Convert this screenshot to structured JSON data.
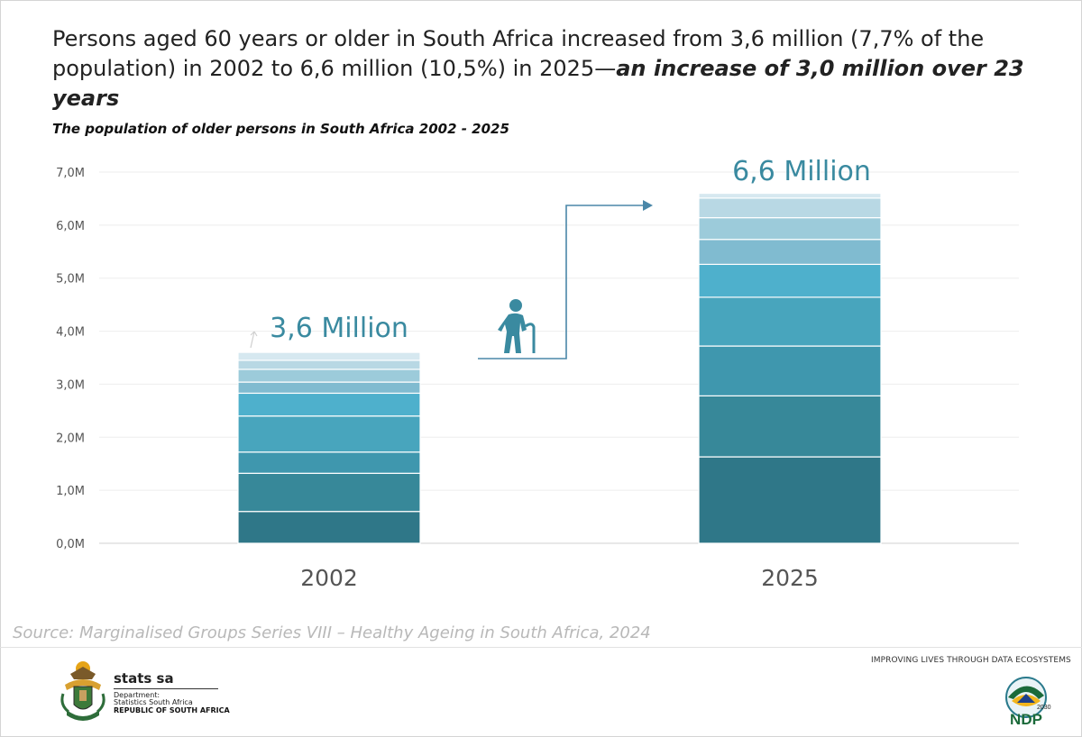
{
  "header": {
    "headline_plain": "Persons aged 60 years or older in South Africa increased from 3,6 million (7,7% of the population) in 2002 to 6,6 million (10,5%) in 2025—",
    "headline_bold": "an increase of 3,0 million over 23 years"
  },
  "chart_data": {
    "type": "bar",
    "title": "The population of older persons in South Africa 2002 - 2025",
    "categories": [
      "2002",
      "2025"
    ],
    "stacked": true,
    "totals": [
      3.6,
      6.6
    ],
    "total_labels": [
      "3,6 Million",
      "6,6 Million"
    ],
    "segments": [
      [
        0.6,
        0.72,
        0.4,
        0.68,
        0.43,
        0.21,
        0.24,
        0.17,
        0.15
      ],
      [
        1.63,
        1.15,
        0.94,
        0.92,
        0.62,
        0.47,
        0.41,
        0.37,
        0.09
      ]
    ],
    "ylim": [
      0,
      7.0
    ],
    "yticks": [
      0,
      1,
      2,
      3,
      4,
      5,
      6,
      7
    ],
    "ytick_labels": [
      "0,0M",
      "1,0M",
      "2,0M",
      "3,0M",
      "4,0M",
      "5,0M",
      "6,0M",
      "7,0M"
    ],
    "grid": true,
    "segment_colors": [
      "#2f7788",
      "#378899",
      "#3f97ae",
      "#48a5bd",
      "#4eb0cc",
      "#80bbd0",
      "#9ccbda",
      "#b8d8e4",
      "#d6e8f0"
    ],
    "label_color": "#3a8aa0"
  },
  "footer": {
    "source": "Source: Marginalised Groups Series VIII – Healthy Ageing in South Africa, 2024",
    "org_name": "stats sa",
    "dept_line1": "Department:",
    "dept_line2": "Statistics South Africa",
    "country": "REPUBLIC OF SOUTH AFRICA",
    "tagline": "IMPROVING LIVES THROUGH DATA ECOSYSTEMS",
    "ndp_year": "2030",
    "ndp_text": "NDP"
  },
  "icons": {
    "elderly": "elderly-person-icon",
    "arrow": "increase-arrow-icon",
    "coat_of_arms": "coat-of-arms-icon",
    "ndp_logo": "ndp-logo-icon"
  }
}
